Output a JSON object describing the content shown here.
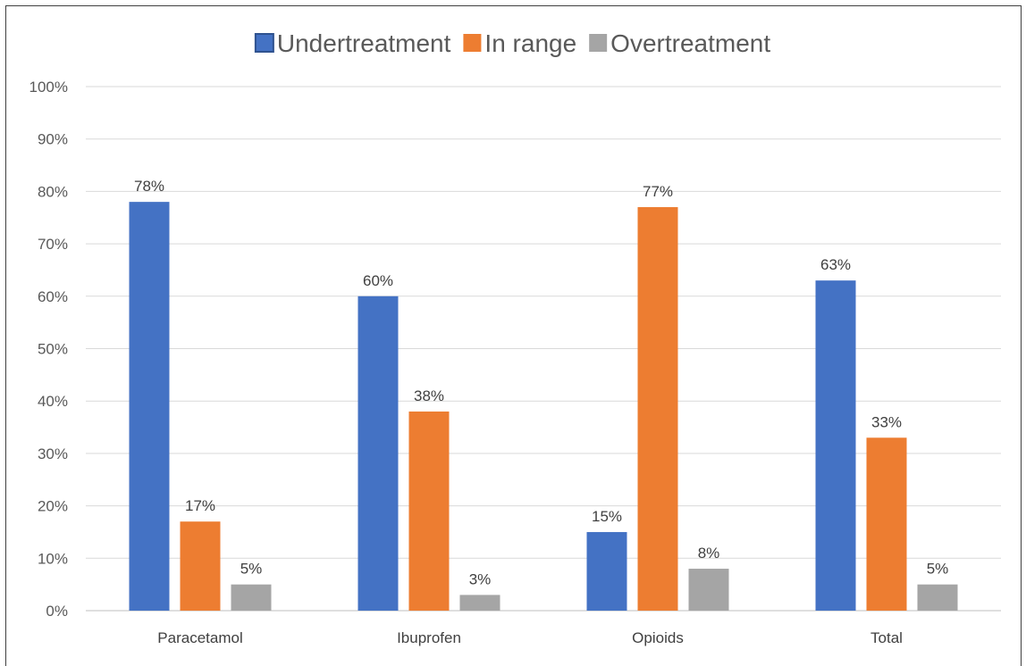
{
  "chart_data": {
    "type": "bar",
    "title": "",
    "xlabel": "",
    "ylabel": "",
    "categories": [
      "Paracetamol",
      "Ibuprofen",
      "Opioids",
      "Total"
    ],
    "series": [
      {
        "name": "Undertreatment",
        "color": "#4472C4",
        "values": [
          78,
          60,
          15,
          63
        ]
      },
      {
        "name": "In range",
        "color": "#ED7D31",
        "values": [
          17,
          38,
          77,
          33
        ]
      },
      {
        "name": "Overtreatment",
        "color": "#A5A5A5",
        "values": [
          5,
          3,
          8,
          5
        ]
      }
    ],
    "ylim": [
      0,
      100
    ],
    "yticks": [
      0,
      10,
      20,
      30,
      40,
      50,
      60,
      70,
      80,
      90,
      100
    ],
    "ytick_labels": [
      "0%",
      "10%",
      "20%",
      "30%",
      "40%",
      "50%",
      "60%",
      "70%",
      "80%",
      "90%",
      "100%"
    ],
    "value_suffix": "%",
    "grid": true,
    "legend_position": "top"
  }
}
